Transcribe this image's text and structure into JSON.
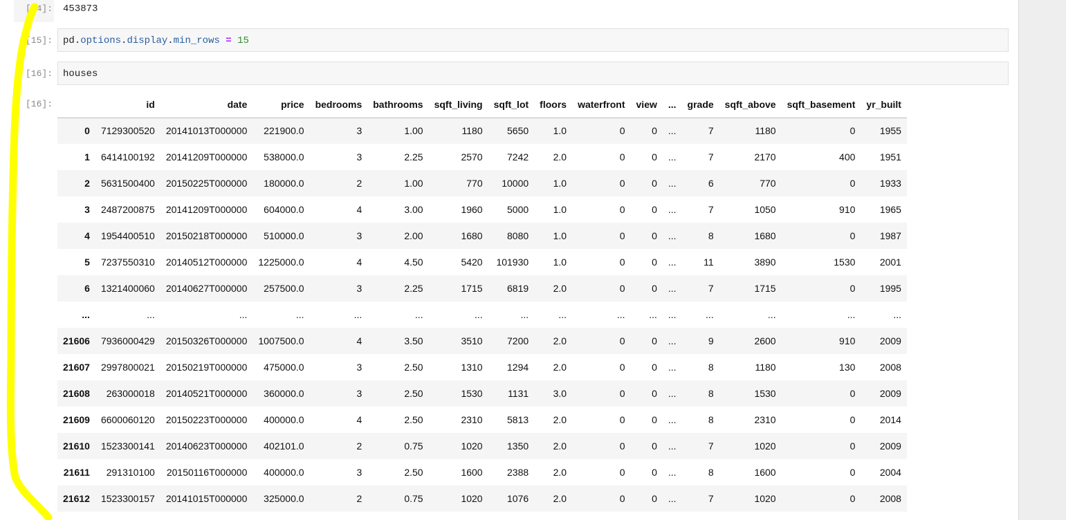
{
  "cells": {
    "out14": {
      "prompt": "[14]:",
      "text": "453873"
    },
    "in15": {
      "prompt": "[15]:",
      "tokens": {
        "pd": "pd",
        "dot1": ".",
        "options": "options",
        "dot2": ".",
        "display": "display",
        "dot3": ".",
        "min_rows": "min_rows",
        "eq": " = ",
        "value": "15"
      }
    },
    "in16": {
      "prompt": "[16]:",
      "code": "houses"
    },
    "out16": {
      "prompt": "[16]:"
    }
  },
  "dataframe": {
    "columns": [
      "",
      "id",
      "date",
      "price",
      "bedrooms",
      "bathrooms",
      "sqft_living",
      "sqft_lot",
      "floors",
      "waterfront",
      "view",
      "...",
      "grade",
      "sqft_above",
      "sqft_basement",
      "yr_built"
    ],
    "rows": [
      [
        "0",
        "7129300520",
        "20141013T000000",
        "221900.0",
        "3",
        "1.00",
        "1180",
        "5650",
        "1.0",
        "0",
        "0",
        "...",
        "7",
        "1180",
        "0",
        "1955"
      ],
      [
        "1",
        "6414100192",
        "20141209T000000",
        "538000.0",
        "3",
        "2.25",
        "2570",
        "7242",
        "2.0",
        "0",
        "0",
        "...",
        "7",
        "2170",
        "400",
        "1951"
      ],
      [
        "2",
        "5631500400",
        "20150225T000000",
        "180000.0",
        "2",
        "1.00",
        "770",
        "10000",
        "1.0",
        "0",
        "0",
        "...",
        "6",
        "770",
        "0",
        "1933"
      ],
      [
        "3",
        "2487200875",
        "20141209T000000",
        "604000.0",
        "4",
        "3.00",
        "1960",
        "5000",
        "1.0",
        "0",
        "0",
        "...",
        "7",
        "1050",
        "910",
        "1965"
      ],
      [
        "4",
        "1954400510",
        "20150218T000000",
        "510000.0",
        "3",
        "2.00",
        "1680",
        "8080",
        "1.0",
        "0",
        "0",
        "...",
        "8",
        "1680",
        "0",
        "1987"
      ],
      [
        "5",
        "7237550310",
        "20140512T000000",
        "1225000.0",
        "4",
        "4.50",
        "5420",
        "101930",
        "1.0",
        "0",
        "0",
        "...",
        "11",
        "3890",
        "1530",
        "2001"
      ],
      [
        "6",
        "1321400060",
        "20140627T000000",
        "257500.0",
        "3",
        "2.25",
        "1715",
        "6819",
        "2.0",
        "0",
        "0",
        "...",
        "7",
        "1715",
        "0",
        "1995"
      ],
      [
        "...",
        "...",
        "...",
        "...",
        "...",
        "...",
        "...",
        "...",
        "...",
        "...",
        "...",
        "...",
        "...",
        "...",
        "...",
        "..."
      ],
      [
        "21606",
        "7936000429",
        "20150326T000000",
        "1007500.0",
        "4",
        "3.50",
        "3510",
        "7200",
        "2.0",
        "0",
        "0",
        "...",
        "9",
        "2600",
        "910",
        "2009"
      ],
      [
        "21607",
        "2997800021",
        "20150219T000000",
        "475000.0",
        "3",
        "2.50",
        "1310",
        "1294",
        "2.0",
        "0",
        "0",
        "...",
        "8",
        "1180",
        "130",
        "2008"
      ],
      [
        "21608",
        "263000018",
        "20140521T000000",
        "360000.0",
        "3",
        "2.50",
        "1530",
        "1131",
        "3.0",
        "0",
        "0",
        "...",
        "8",
        "1530",
        "0",
        "2009"
      ],
      [
        "21609",
        "6600060120",
        "20150223T000000",
        "400000.0",
        "4",
        "2.50",
        "2310",
        "5813",
        "2.0",
        "0",
        "0",
        "...",
        "8",
        "2310",
        "0",
        "2014"
      ],
      [
        "21610",
        "1523300141",
        "20140623T000000",
        "402101.0",
        "2",
        "0.75",
        "1020",
        "1350",
        "2.0",
        "0",
        "0",
        "...",
        "7",
        "1020",
        "0",
        "2009"
      ],
      [
        "21611",
        "291310100",
        "20150116T000000",
        "400000.0",
        "3",
        "2.50",
        "1600",
        "2388",
        "2.0",
        "0",
        "0",
        "...",
        "8",
        "1600",
        "0",
        "2004"
      ],
      [
        "21612",
        "1523300157",
        "20141015T000000",
        "325000.0",
        "2",
        "0.75",
        "1020",
        "1076",
        "2.0",
        "0",
        "0",
        "...",
        "7",
        "1020",
        "0",
        "2008"
      ]
    ]
  },
  "colors": {
    "highlighter": "#ffff00",
    "prompt": "#888888",
    "keyword_attr": "#2b5e9e",
    "operator": "#aa22ff",
    "number": "#2e8b2e"
  }
}
